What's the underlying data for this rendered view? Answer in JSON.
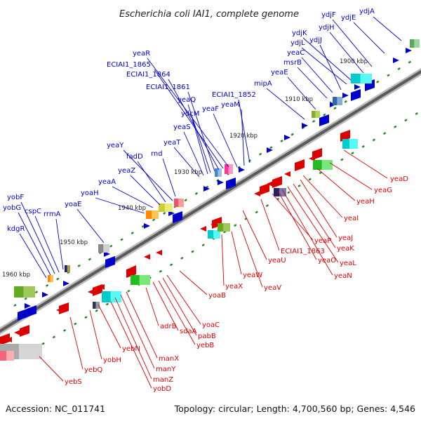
{
  "title": "Escherichia coli IAI1, complete genome",
  "accession": "Accession: NC_011741",
  "summary": "Topology: circular; Length: 4,700,560 bp; Genes: 4,546",
  "scale_ticks": [
    "1900 kbp",
    "1910 kbp",
    "1920 kbp",
    "1930 kbp",
    "1940 kbp",
    "1950 kbp",
    "1960 kbp"
  ],
  "forward_labels": [
    "ydjA",
    "ydjE",
    "ydjF",
    "ydjH",
    "ydjK",
    "ydjL",
    "ydjJ",
    "yeaC",
    "msrB",
    "yeaE",
    "mipA",
    "ECIAI1_1852",
    "yeaM",
    "yeaF",
    "yeaR",
    "ECIAI1_1865",
    "ECIAI1_1864",
    "ECIAI1_1861",
    "yeaQ",
    "ydcM",
    "yeaS",
    "yeaT",
    "yeaY",
    "fadD",
    "rnd",
    "yeaZ",
    "yeaA",
    "yoaH",
    "yoaE",
    "yobF",
    "yobG",
    "cspC",
    "rrmA",
    "kdgR"
  ],
  "reverse_labels": [
    "yeaD",
    "yeaG",
    "yeaH",
    "yeaI",
    "yeaJ",
    "yeaK",
    "yeaL",
    "yeaN",
    "yeaO",
    "yeaP",
    "ECIAI1_1863",
    "yeaU",
    "yeaV",
    "yeaW",
    "yeaX",
    "yoaB",
    "yoaC",
    "pabB",
    "yebB",
    "sdaA",
    "adrB",
    "manX",
    "manY",
    "manZ",
    "yobD",
    "yebN",
    "yobH",
    "yebQ",
    "yebS"
  ],
  "colors": {
    "forward": "#0000cc",
    "reverse": "#dd0000",
    "backbone": "#888888",
    "tick": "#228822"
  }
}
